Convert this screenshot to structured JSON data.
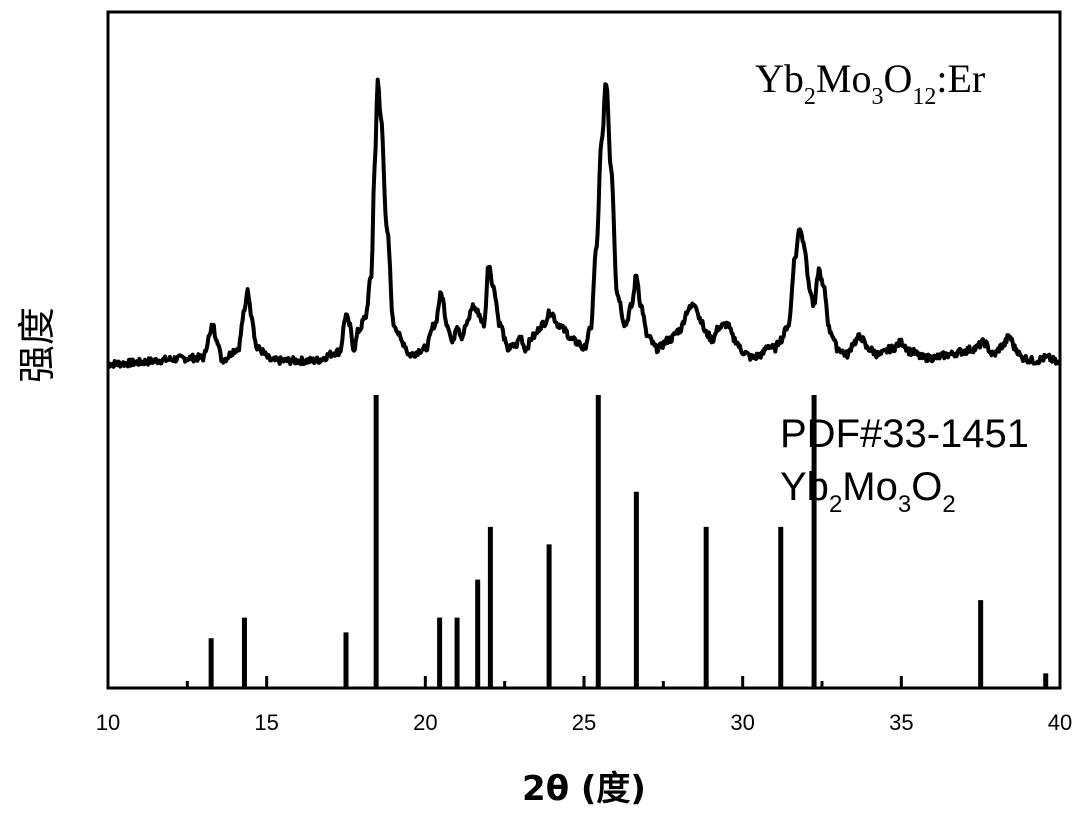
{
  "chart_data": {
    "type": "line",
    "xlabel": "2θ (度)",
    "ylabel": "强度",
    "xlim": [
      10,
      40
    ],
    "ylim": [
      0,
      1
    ],
    "x_ticks": [
      10,
      15,
      20,
      25,
      30,
      35,
      40
    ],
    "grid": false,
    "annotations": {
      "sample": {
        "base": "Yb",
        "s1": "2",
        "mid1": "Mo",
        "s2": "3",
        "mid2": "O",
        "s3": "12",
        "tail": ":Er"
      },
      "reference_code": "PDF#33-1451",
      "reference_formula": {
        "base": "Yb",
        "s1": "2",
        "mid1": "Mo",
        "s2": "3",
        "mid2": "O",
        "s3": "2"
      }
    },
    "series": [
      {
        "type": "line",
        "baseline": 0.535,
        "x": [
          10.0,
          13.0,
          13.2,
          13.3,
          13.4,
          13.6,
          14.1,
          14.3,
          14.4,
          14.5,
          14.7,
          15.2,
          16.5,
          17.3,
          17.5,
          17.6,
          17.75,
          17.9,
          18.1,
          18.3,
          18.4,
          18.5,
          18.6,
          18.8,
          19.0,
          19.3,
          19.5,
          20.0,
          20.3,
          20.5,
          20.7,
          20.85,
          21.0,
          21.15,
          21.3,
          21.5,
          21.65,
          21.85,
          22.0,
          22.15,
          22.35,
          22.6,
          22.85,
          23.0,
          23.15,
          23.4,
          23.7,
          23.95,
          24.2,
          24.4,
          24.6,
          24.8,
          25.0,
          25.2,
          25.4,
          25.55,
          25.7,
          25.85,
          26.05,
          26.3,
          26.5,
          26.65,
          26.8,
          27.0,
          27.3,
          27.7,
          28.0,
          28.3,
          28.5,
          28.65,
          28.85,
          29.05,
          29.25,
          29.5,
          29.75,
          30.0,
          30.3,
          30.6,
          30.8,
          31.0,
          31.2,
          31.45,
          31.65,
          31.8,
          31.95,
          32.1,
          32.25,
          32.4,
          32.55,
          32.75,
          33.0,
          33.3,
          33.5,
          33.7,
          33.95,
          34.3,
          34.7,
          35.0,
          35.3,
          35.7,
          36.0,
          36.5,
          36.9,
          37.3,
          37.6,
          37.9,
          38.2,
          38.4,
          38.6,
          38.8,
          39.2,
          39.6,
          40.0
        ],
        "y": [
          0.535,
          0.545,
          0.58,
          0.6,
          0.58,
          0.542,
          0.56,
          0.62,
          0.66,
          0.62,
          0.56,
          0.54,
          0.54,
          0.555,
          0.615,
          0.6,
          0.56,
          0.59,
          0.61,
          0.68,
          0.86,
          1.0,
          0.94,
          0.75,
          0.6,
          0.57,
          0.55,
          0.56,
          0.6,
          0.65,
          0.6,
          0.57,
          0.6,
          0.58,
          0.6,
          0.63,
          0.62,
          0.6,
          0.7,
          0.66,
          0.6,
          0.56,
          0.565,
          0.58,
          0.56,
          0.58,
          0.6,
          0.62,
          0.6,
          0.59,
          0.575,
          0.57,
          0.56,
          0.59,
          0.73,
          0.9,
          1.0,
          0.86,
          0.65,
          0.6,
          0.63,
          0.68,
          0.63,
          0.58,
          0.56,
          0.575,
          0.59,
          0.625,
          0.635,
          0.61,
          0.585,
          0.575,
          0.595,
          0.6,
          0.575,
          0.555,
          0.545,
          0.55,
          0.565,
          0.56,
          0.575,
          0.6,
          0.71,
          0.76,
          0.73,
          0.66,
          0.63,
          0.69,
          0.66,
          0.59,
          0.56,
          0.55,
          0.57,
          0.58,
          0.56,
          0.55,
          0.56,
          0.57,
          0.555,
          0.545,
          0.545,
          0.55,
          0.555,
          0.56,
          0.57,
          0.55,
          0.565,
          0.58,
          0.56,
          0.545,
          0.54,
          0.545,
          0.535
        ]
      },
      {
        "type": "stick",
        "name": "PDF#33-1451",
        "x": [
          13.25,
          14.3,
          17.5,
          18.45,
          20.45,
          21.0,
          21.65,
          22.05,
          23.9,
          25.45,
          26.65,
          28.85,
          31.2,
          32.25,
          37.5,
          39.55
        ],
        "y": [
          0.085,
          0.12,
          0.095,
          0.5,
          0.12,
          0.12,
          0.185,
          0.275,
          0.245,
          0.5,
          0.335,
          0.275,
          0.275,
          0.5,
          0.15,
          0.025
        ]
      }
    ]
  }
}
